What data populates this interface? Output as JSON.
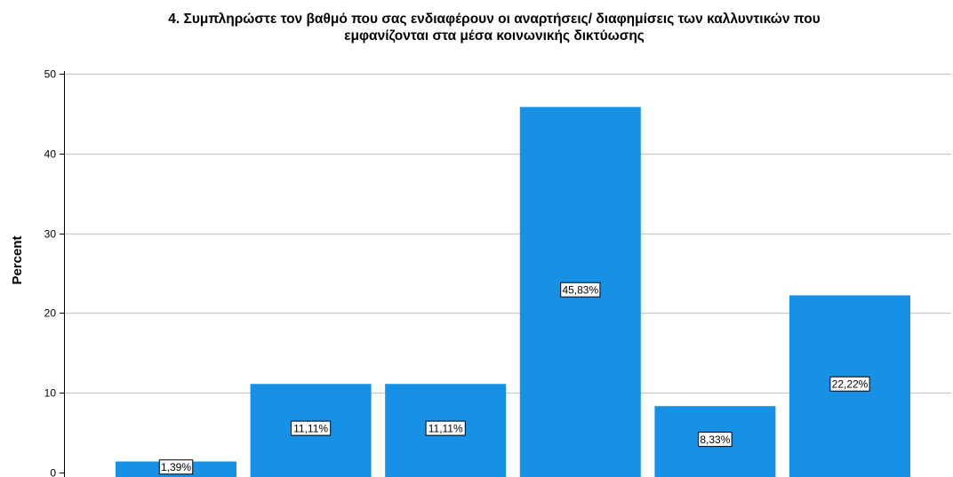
{
  "chart_data": {
    "type": "bar",
    "title_lines": [
      "4. Συμπληρώστε τον βαθμό που σας ενδιαφέρουν οι αναρτήσεις/ διαφημίσεις  των καλλυντικών που",
      "εμφανίζονται στα μέσα κοινωνικής δικτύωσης"
    ],
    "ylabel": "Percent",
    "xlabel": "",
    "ylim": [
      0,
      50
    ],
    "yticks": [
      "0",
      "10",
      "20",
      "30",
      "40",
      "50"
    ],
    "grid": true,
    "values": [
      1.39,
      11.11,
      11.11,
      45.83,
      8.33,
      22.22
    ],
    "data_labels": [
      "1,39%",
      "11,11%",
      "11,11%",
      "45,83%",
      "8,33%",
      "22,22%"
    ],
    "colors": {
      "bar": "#1691e6",
      "grid": "#c8c8c8",
      "axis": "#000000",
      "label_border": "#000000",
      "label_bg": "#ffffff"
    }
  }
}
